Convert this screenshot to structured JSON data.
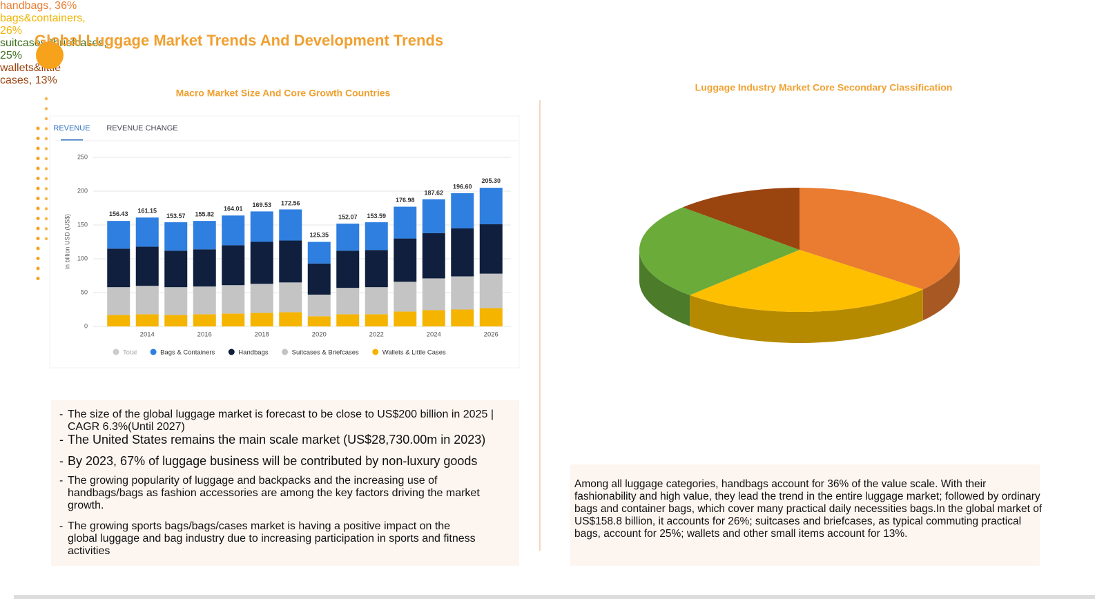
{
  "title": "Global Luggage Market Trends And Development Trends",
  "chart_data": [
    {
      "type": "stacked_bar",
      "title": "Macro Market Size And Core Growth Countries",
      "tabs": [
        "REVENUE",
        "REVENUE CHANGE"
      ],
      "ylabel": "in billion USD (US$)",
      "categories": [
        null,
        "2014",
        null,
        "2016",
        null,
        "2018",
        null,
        "2020",
        null,
        "2022",
        null,
        "2024",
        null,
        "2026"
      ],
      "series": [
        {
          "name": "Total",
          "color": "#cccccc",
          "values": [
            156.43,
            161.15,
            153.57,
            155.82,
            164.01,
            169.53,
            172.56,
            125.35,
            152.07,
            153.59,
            176.98,
            187.62,
            196.6,
            205.3
          ],
          "value_labels": [
            "156.43",
            "161.15",
            "153.57",
            "155.82",
            "164.01",
            "169.53",
            "172.56",
            "125.35",
            "152.07",
            "153.59",
            "176.98",
            "187.62",
            "196.60",
            "205.30"
          ]
        },
        {
          "name": "Bags & Containers",
          "color": "#2e7fe0",
          "values": [
            41,
            43,
            42,
            42,
            44,
            45,
            46,
            32,
            40,
            41,
            47,
            50,
            52,
            54
          ]
        },
        {
          "name": "Handbags",
          "color": "#0f1f3d",
          "values": [
            57,
            58,
            54,
            55,
            59,
            62,
            62,
            46,
            55,
            55,
            64,
            67,
            71,
            73
          ]
        },
        {
          "name": "Suitcases & Briefcases",
          "color": "#c4c4c4",
          "values": [
            41,
            42,
            41,
            41,
            42,
            43,
            44,
            32,
            39,
            40,
            44,
            47,
            49,
            51
          ]
        },
        {
          "name": "Wallets & Little Cases",
          "color": "#f5b400",
          "values": [
            17,
            18,
            17,
            18,
            19,
            20,
            21,
            15,
            18,
            18,
            22,
            24,
            25,
            27
          ]
        }
      ],
      "ylim": [
        0,
        250
      ],
      "yticks": [
        0,
        50,
        100,
        150,
        200,
        250
      ],
      "grid": true
    },
    {
      "type": "pie3d",
      "title": "Luggage Industry Market Core Secondary Classification",
      "values": [
        36,
        26,
        25,
        13
      ],
      "value_labels": [
        "handbags, 36%",
        "bags&containers, 26%",
        "suitcases&briefcases, 25%",
        "wallets&little cases, 13%"
      ],
      "colors": [
        "#e97c30",
        "#fdbf00",
        "#6aab3a",
        "#9a4410"
      ]
    }
  ],
  "bullets": [
    "The size of the global luggage market is forecast to be close to US$200 billion in 2025 | CAGR 6.3%(Until 2027)",
    "The United States remains the main scale market (US$28,730.00m in 2023)",
    "By 2023, 67% of luggage business will be contributed by non-luxury goods",
    "The growing popularity of luggage and backpacks and the increasing use of handbags/bags as fashion accessories are among the key factors driving the market growth.",
    "The growing sports bags/bags/cases market is having a positive impact on the global luggage and bag industry due to increasing participation in sports and fitness activities"
  ],
  "summary": "Among all luggage categories, handbags account for 36% of the value scale. With their fashionability and high value, they lead the trend in the entire luggage market; followed by ordinary bags and container bags, which cover many practical daily necessities bags.In the global market of US$158.8 billion, it accounts for 26%; suitcases and briefcases, as typical commuting practical bags, account for 25%; wallets and other small items account for 13%."
}
